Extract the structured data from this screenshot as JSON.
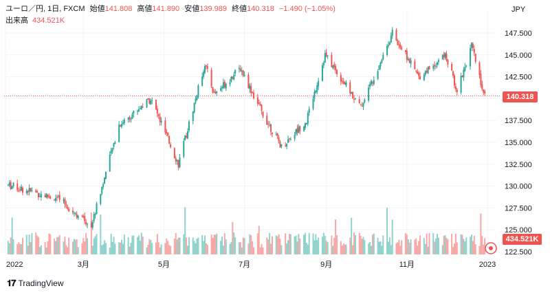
{
  "legend": {
    "symbol": "ユーロ／円, 1日, FXCM",
    "open_label": "始値",
    "open_value": "141.808",
    "high_label": "高値",
    "high_value": "141.890",
    "low_label": "安値",
    "low_value": "139.989",
    "close_label": "終値",
    "close_value": "140.318",
    "change": "−1.490 (−1.05%)",
    "volume_label": "出来高",
    "volume_value": "434.521K"
  },
  "currency": "JPY",
  "last_price_label": "140.318",
  "last_volume_label": "434.521K",
  "branding": "TradingView",
  "colors": {
    "up": "#26a69a",
    "down": "#ef5350",
    "vol_up": "#8fd3cc",
    "vol_down": "#f7a7a5"
  },
  "chart_data": {
    "type": "candlestick",
    "y_axis_ticks": [
      "147.500",
      "145.000",
      "142.500",
      "140.000",
      "137.500",
      "135.000",
      "132.500",
      "130.000",
      "127.500",
      "125.000",
      "122.500"
    ],
    "x_axis_ticks": [
      "2022",
      "3月",
      "5月",
      "7月",
      "9月",
      "11月",
      "2023"
    ],
    "ylim": [
      122.5,
      148.5
    ],
    "last_price": 140.318,
    "series": [
      {
        "name": "price_path",
        "x": [
          "2022-01",
          "2022-02-10",
          "2022-03-07",
          "2022-03-28",
          "2022-04-21",
          "2022-05-12",
          "2022-06-01",
          "2022-06-08",
          "2022-06-28",
          "2022-07-14",
          "2022-07-29",
          "2022-08-17",
          "2022-08-31",
          "2022-09-27",
          "2022-10-21",
          "2022-11-10",
          "2022-11-30",
          "2022-12-09",
          "2022-12-20",
          "2022-12-30"
        ],
        "y": [
          130.2,
          128.5,
          125.5,
          137.0,
          140.0,
          132.5,
          144.0,
          140.5,
          143.5,
          138.5,
          134.5,
          137.5,
          145.0,
          139.0,
          147.5,
          142.5,
          145.0,
          141.0,
          146.0,
          140.3
        ]
      }
    ]
  }
}
